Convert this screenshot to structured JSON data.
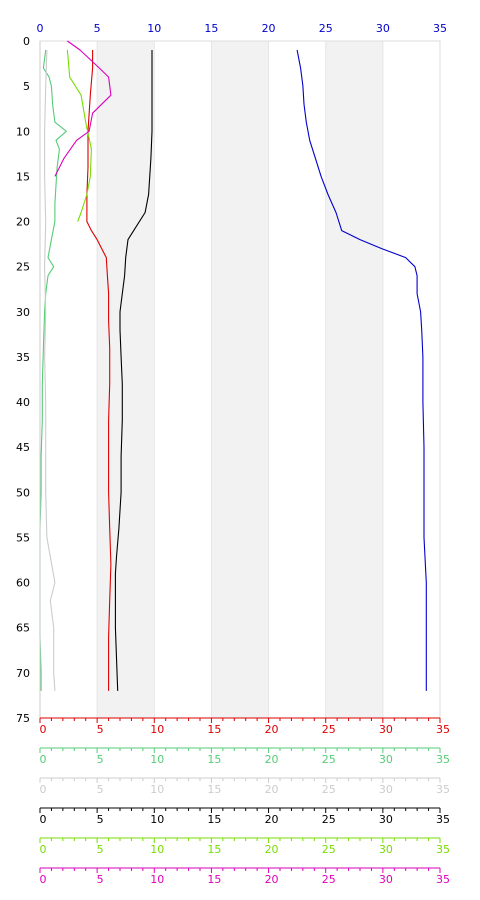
{
  "chart_data": {
    "type": "line",
    "title": "",
    "grid": "alternating shaded vertical bands every 5 units",
    "y_axis": {
      "label": "",
      "range": [
        0,
        75
      ],
      "ticks": [
        0,
        5,
        10,
        15,
        20,
        25,
        30,
        35,
        40,
        45,
        50,
        55,
        60,
        65,
        70,
        75
      ],
      "direction": "downward"
    },
    "x_axes": [
      {
        "position": "top",
        "color": "#0000cc",
        "range": [
          0,
          35
        ],
        "ticks": [
          0,
          5,
          10,
          15,
          20,
          25,
          30,
          35
        ]
      },
      {
        "position": "bottom",
        "color": "#dd0000",
        "range": [
          0,
          35
        ],
        "ticks": [
          0,
          5,
          10,
          15,
          20,
          25,
          30,
          35
        ]
      },
      {
        "position": "bottom",
        "color": "#55cc77",
        "range": [
          0,
          35
        ],
        "ticks": [
          0,
          5,
          10,
          15,
          20,
          25,
          30,
          35
        ]
      },
      {
        "position": "bottom",
        "color": "#cccccc",
        "range": [
          0,
          35
        ],
        "ticks": [
          0,
          5,
          10,
          15,
          20,
          25,
          30,
          35
        ]
      },
      {
        "position": "bottom",
        "color": "#000000",
        "range": [
          0,
          35
        ],
        "ticks": [
          0,
          5,
          10,
          15,
          20,
          25,
          30,
          35
        ]
      },
      {
        "position": "bottom",
        "color": "#77dd00",
        "range": [
          0,
          35
        ],
        "ticks": [
          0,
          5,
          10,
          15,
          20,
          25,
          30,
          35
        ]
      },
      {
        "position": "bottom",
        "color": "#dd00bb",
        "range": [
          0,
          35
        ],
        "ticks": [
          0,
          5,
          10,
          15,
          20,
          25,
          30,
          35
        ]
      }
    ],
    "series": [
      {
        "color": "#0000cc",
        "points": [
          [
            22.5,
            1
          ],
          [
            22.8,
            3
          ],
          [
            23.0,
            5
          ],
          [
            23.1,
            7
          ],
          [
            23.3,
            9
          ],
          [
            23.6,
            11
          ],
          [
            24.1,
            13
          ],
          [
            24.6,
            15
          ],
          [
            25.2,
            17
          ],
          [
            25.9,
            19
          ],
          [
            26.4,
            21
          ],
          [
            28.0,
            22
          ],
          [
            29.9,
            23
          ],
          [
            32.0,
            24
          ],
          [
            32.8,
            25
          ],
          [
            33.0,
            26
          ],
          [
            33.0,
            28
          ],
          [
            33.3,
            30
          ],
          [
            33.4,
            32
          ],
          [
            33.5,
            35
          ],
          [
            33.5,
            40
          ],
          [
            33.6,
            45
          ],
          [
            33.6,
            50
          ],
          [
            33.6,
            55
          ],
          [
            33.8,
            60
          ],
          [
            33.8,
            65
          ],
          [
            33.8,
            72
          ]
        ]
      },
      {
        "color": "#000000",
        "points": [
          [
            9.8,
            1
          ],
          [
            9.8,
            5
          ],
          [
            9.8,
            10
          ],
          [
            9.7,
            13
          ],
          [
            9.5,
            17
          ],
          [
            9.2,
            19
          ],
          [
            8.2,
            21
          ],
          [
            7.7,
            22
          ],
          [
            7.5,
            24
          ],
          [
            7.4,
            26
          ],
          [
            7.2,
            28
          ],
          [
            7.0,
            30
          ],
          [
            7.0,
            32
          ],
          [
            7.1,
            35
          ],
          [
            7.2,
            38
          ],
          [
            7.2,
            42
          ],
          [
            7.1,
            46
          ],
          [
            7.1,
            50
          ],
          [
            6.9,
            54
          ],
          [
            6.7,
            57
          ],
          [
            6.6,
            59
          ],
          [
            6.6,
            65
          ],
          [
            6.8,
            72
          ]
        ]
      },
      {
        "color": "#dd0000",
        "points": [
          [
            4.6,
            1
          ],
          [
            4.6,
            3
          ],
          [
            4.4,
            6
          ],
          [
            4.2,
            10
          ],
          [
            4.2,
            14
          ],
          [
            4.1,
            17
          ],
          [
            4.1,
            20
          ],
          [
            4.5,
            21
          ],
          [
            5.0,
            22
          ],
          [
            5.4,
            23
          ],
          [
            5.8,
            24
          ],
          [
            5.9,
            26
          ],
          [
            6.0,
            28
          ],
          [
            6.0,
            31
          ],
          [
            6.1,
            34
          ],
          [
            6.1,
            38
          ],
          [
            6.0,
            42
          ],
          [
            6.0,
            46
          ],
          [
            6.0,
            50
          ],
          [
            6.1,
            54
          ],
          [
            6.2,
            58
          ],
          [
            6.1,
            62
          ],
          [
            6.0,
            66
          ],
          [
            6.0,
            70
          ],
          [
            6.0,
            72
          ]
        ]
      },
      {
        "color": "#55cc77",
        "points": [
          [
            0.5,
            1
          ],
          [
            0.3,
            3
          ],
          [
            0.8,
            4
          ],
          [
            1.0,
            5
          ],
          [
            1.1,
            7
          ],
          [
            1.3,
            9
          ],
          [
            2.3,
            10
          ],
          [
            1.4,
            11
          ],
          [
            1.7,
            12
          ],
          [
            1.5,
            14
          ],
          [
            1.4,
            16
          ],
          [
            1.3,
            18
          ],
          [
            1.3,
            20
          ],
          [
            1.0,
            22
          ],
          [
            0.7,
            24
          ],
          [
            1.2,
            25
          ],
          [
            0.7,
            26
          ],
          [
            0.5,
            28
          ],
          [
            0.4,
            30
          ],
          [
            0.3,
            34
          ],
          [
            0.2,
            38
          ],
          [
            0.2,
            42
          ],
          [
            0.1,
            46
          ],
          [
            0.1,
            50
          ],
          [
            0.0,
            54
          ],
          [
            0.0,
            58
          ],
          [
            0.0,
            62
          ],
          [
            0.0,
            66
          ],
          [
            0.1,
            70
          ],
          [
            0.1,
            72
          ]
        ]
      },
      {
        "color": "#cccccc",
        "points": [
          [
            0.6,
            1
          ],
          [
            0.5,
            5
          ],
          [
            0.4,
            10
          ],
          [
            0.4,
            15
          ],
          [
            0.5,
            20
          ],
          [
            0.4,
            25
          ],
          [
            0.5,
            30
          ],
          [
            0.4,
            35
          ],
          [
            0.5,
            40
          ],
          [
            0.5,
            45
          ],
          [
            0.5,
            50
          ],
          [
            0.6,
            55
          ],
          [
            1.3,
            60
          ],
          [
            0.9,
            62
          ],
          [
            1.2,
            65
          ],
          [
            1.2,
            70
          ],
          [
            1.3,
            72
          ]
        ]
      },
      {
        "color": "#77dd00",
        "points": [
          [
            2.4,
            1
          ],
          [
            2.6,
            4
          ],
          [
            3.6,
            6
          ],
          [
            4.0,
            9
          ],
          [
            4.5,
            12
          ],
          [
            4.4,
            15
          ],
          [
            4.1,
            17
          ],
          [
            3.6,
            19
          ],
          [
            3.3,
            20
          ]
        ]
      },
      {
        "color": "#dd00bb",
        "points": [
          [
            2.4,
            0
          ],
          [
            3.5,
            1
          ],
          [
            5.2,
            3
          ],
          [
            6.0,
            4
          ],
          [
            6.2,
            6
          ],
          [
            5.4,
            7
          ],
          [
            4.6,
            8
          ],
          [
            4.3,
            10
          ],
          [
            3.2,
            11
          ],
          [
            2.1,
            13
          ],
          [
            1.3,
            15
          ]
        ]
      }
    ]
  }
}
